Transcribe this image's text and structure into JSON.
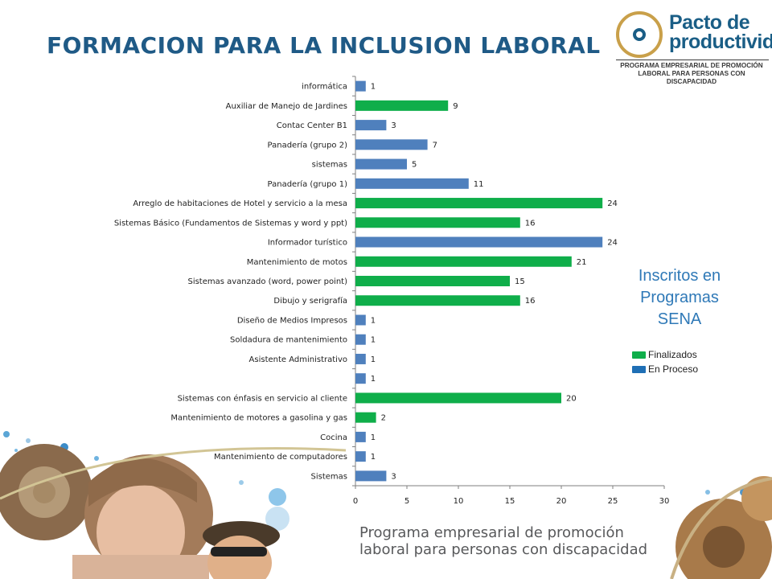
{
  "slide": {
    "title": "FORMACION PARA LA INCLUSION LABORAL",
    "note": "Inscritos en Programas SENA",
    "tagline_line1": "Programa empresarial de promoción",
    "tagline_line2": "laboral para personas con discapacidad"
  },
  "logo": {
    "name_line1": "Pacto de",
    "name_line2": "productividad",
    "sub_line1": "PROGRAMA EMPRESARIAL DE PROMOCIÓN",
    "sub_line2": "LABORAL PARA PERSONAS CON DISCAPACIDAD",
    "ring_color": "#c9a04a",
    "brand_color": "#1a5e86"
  },
  "colors": {
    "finalizados": "#0fae4a",
    "en_proceso": "#4f80bd",
    "title": "#1f5a86",
    "note": "#2f79b7"
  },
  "legend": [
    {
      "label": "Finalizados",
      "color": "#0fae4a"
    },
    {
      "label": "En Proceso",
      "color": "#1f6fb5"
    }
  ],
  "chart_data": {
    "type": "bar",
    "orientation": "horizontal",
    "xlim": [
      0,
      30
    ],
    "xticks": [
      0,
      5,
      10,
      15,
      20,
      25,
      30
    ],
    "grid": false,
    "legend_position": "right",
    "categories": [
      "informática",
      "Auxiliar de Manejo de Jardines",
      "Contac Center B1",
      "Panadería (grupo 2)",
      "sistemas",
      "Panadería (grupo 1)",
      "Arreglo de habitaciones de Hotel y servicio a la mesa",
      "Sistemas Básico (Fundamentos de Sistemas y word y ppt)",
      "Informador turístico",
      "Mantenimiento de motos",
      "Sistemas avanzado (word, power point)",
      "Dibujo y serigrafía",
      "Diseño de Medios Impresos",
      "Soldadura de mantenimiento",
      "Asistente Administrativo",
      "",
      "Sistemas con énfasis en servicio al cliente",
      "Mantenimiento de motores a gasolina y gas",
      "Cocina",
      "Mantenimiento de computadores",
      "Sistemas"
    ],
    "values": [
      1,
      9,
      3,
      7,
      5,
      11,
      24,
      16,
      24,
      21,
      15,
      16,
      1,
      1,
      1,
      1,
      20,
      2,
      1,
      1,
      3
    ],
    "status": [
      "p",
      "f",
      "p",
      "p",
      "p",
      "p",
      "f",
      "f",
      "p",
      "f",
      "f",
      "f",
      "p",
      "p",
      "p",
      "p",
      "f",
      "f",
      "p",
      "p",
      "p"
    ]
  }
}
